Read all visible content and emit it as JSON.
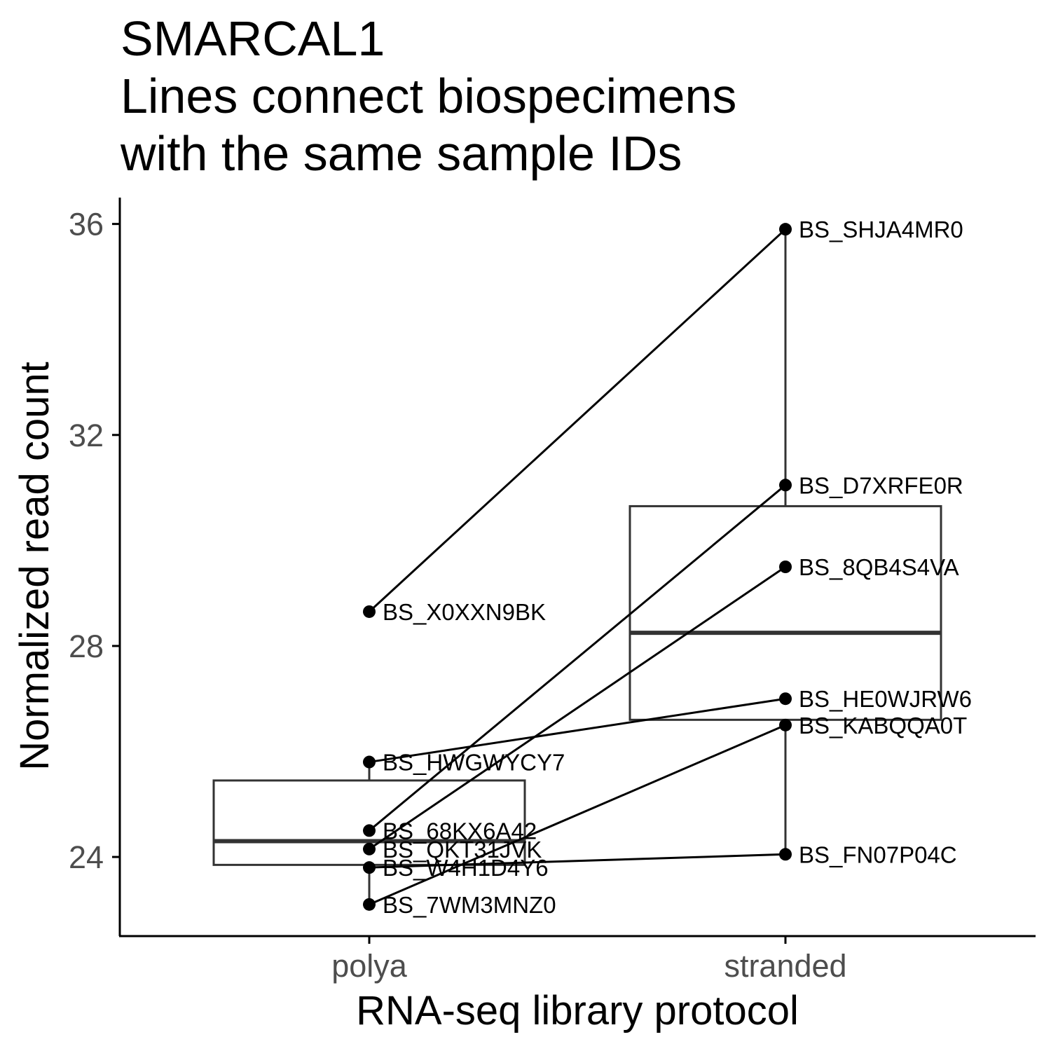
{
  "chart_data": {
    "type": "boxplot-paired",
    "title": "SMARCAL1",
    "subtitle_lines": [
      "Lines connect biospecimens",
      "with the same sample IDs"
    ],
    "xlabel": "RNA-seq library protocol",
    "ylabel": "Normalized read count",
    "categories": [
      "polya",
      "stranded"
    ],
    "y_ticks": [
      24,
      28,
      32,
      36
    ],
    "ylim": [
      22.5,
      36.5
    ],
    "grid": false,
    "boxes": [
      {
        "category": "polya",
        "whisker_low": 23.1,
        "q1": 23.85,
        "median": 24.3,
        "q3": 25.45,
        "whisker_high": 25.8
      },
      {
        "category": "stranded",
        "whisker_low": 24.05,
        "q1": 26.6,
        "median": 28.25,
        "q3": 30.65,
        "whisker_high": 35.9
      }
    ],
    "points": [
      {
        "category": "polya",
        "label": "BS_X0XXN9BK",
        "value": 28.65
      },
      {
        "category": "polya",
        "label": "BS_HWGWYCY7",
        "value": 25.8
      },
      {
        "category": "polya",
        "label": "BS_68KX6A42",
        "value": 24.5
      },
      {
        "category": "polya",
        "label": "BS_QKT31JVK",
        "value": 24.15
      },
      {
        "category": "polya",
        "label": "BS_W4H1D4Y6",
        "value": 23.8
      },
      {
        "category": "polya",
        "label": "BS_7WM3MNZ0",
        "value": 23.1
      },
      {
        "category": "stranded",
        "label": "BS_SHJA4MR0",
        "value": 35.9
      },
      {
        "category": "stranded",
        "label": "BS_D7XRFE0R",
        "value": 31.05
      },
      {
        "category": "stranded",
        "label": "BS_8QB4S4VA",
        "value": 29.5
      },
      {
        "category": "stranded",
        "label": "BS_HE0WJRW6",
        "value": 27.0
      },
      {
        "category": "stranded",
        "label": "BS_KABQQA0T",
        "value": 26.5
      },
      {
        "category": "stranded",
        "label": "BS_FN07P04C",
        "value": 24.05
      }
    ],
    "pairs": [
      {
        "from": 28.65,
        "to": 35.9
      },
      {
        "from": 24.5,
        "to": 31.05
      },
      {
        "from": 24.15,
        "to": 29.5
      },
      {
        "from": 25.8,
        "to": 27.0
      },
      {
        "from": 23.1,
        "to": 26.5
      },
      {
        "from": 23.8,
        "to": 24.05
      }
    ]
  }
}
